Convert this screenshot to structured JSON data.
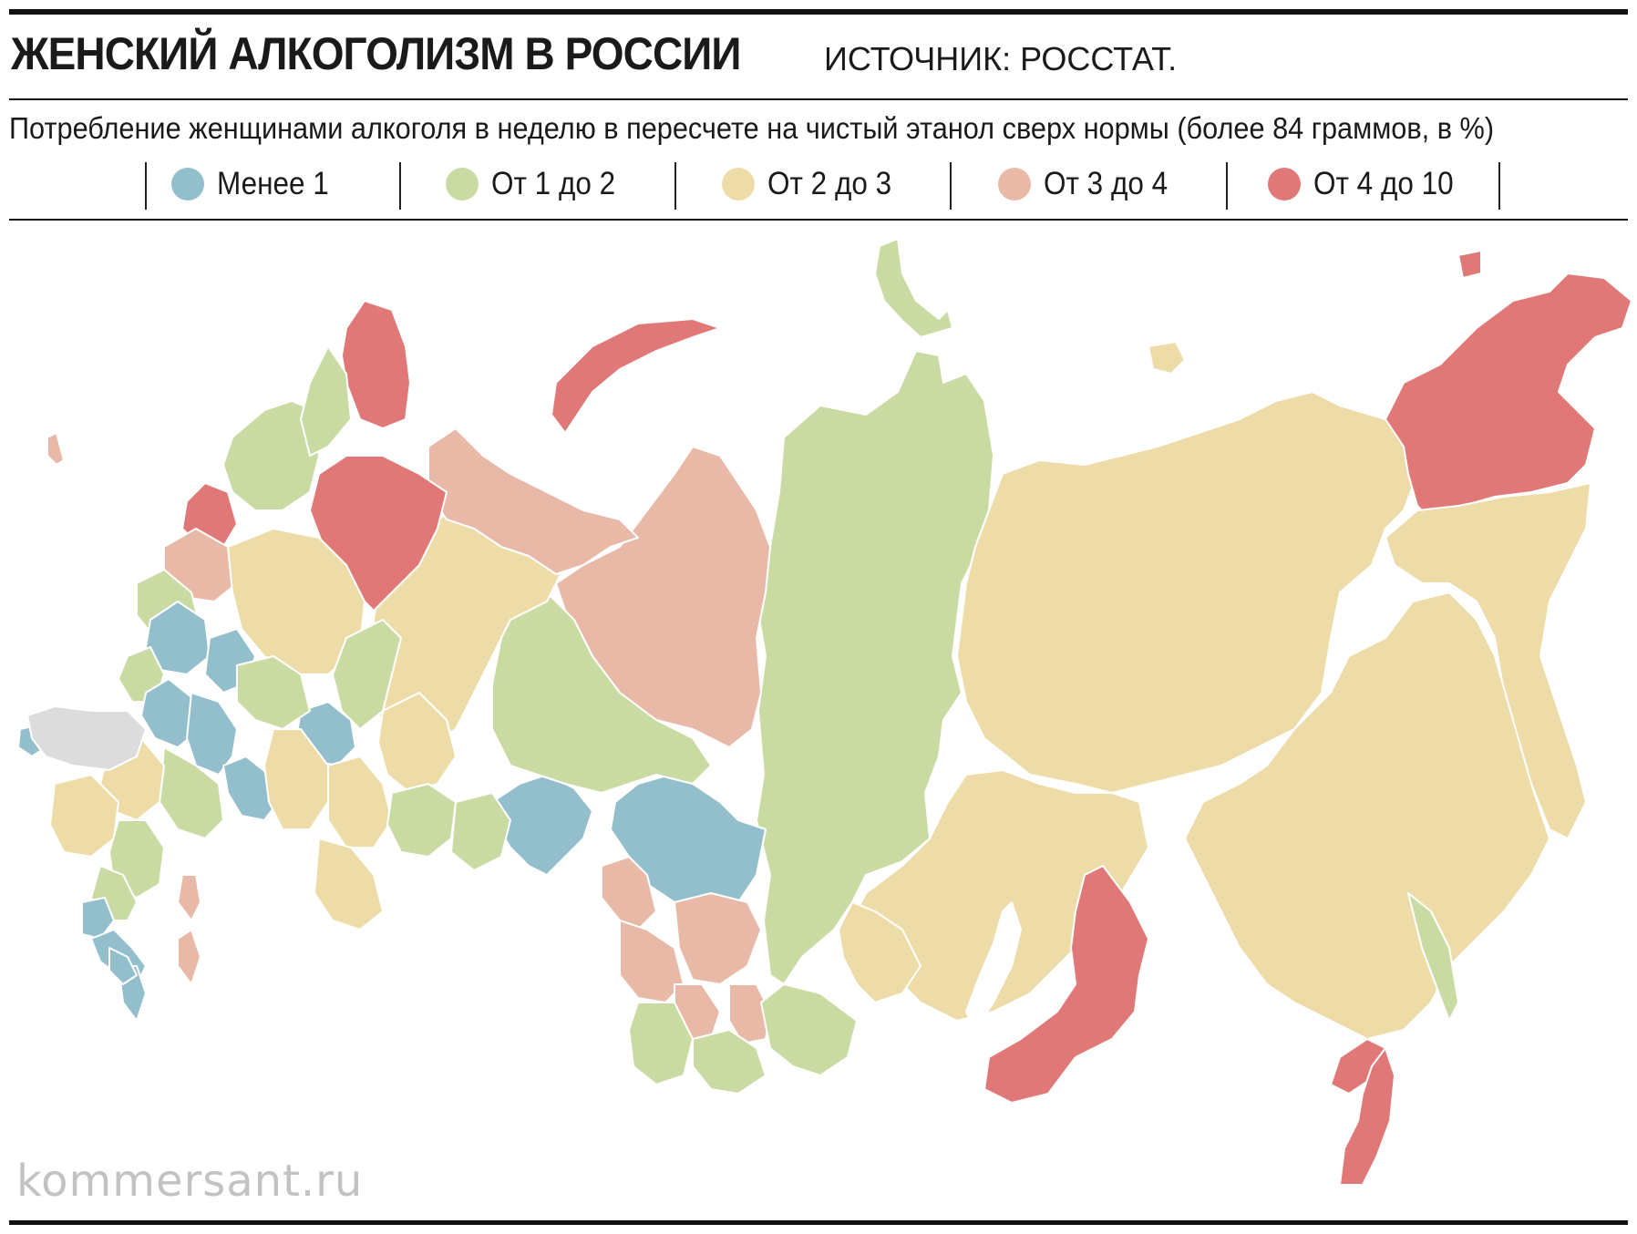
{
  "header": {
    "title": "ЖЕНСКИЙ АЛКОГОЛИЗМ В РОССИИ",
    "source": "ИСТОЧНИК: РОССТАТ.",
    "subtitle": "Потребление женщинами алкоголя в неделю в пересчете на чистый этанол сверх нормы (более 84 граммов, в %)"
  },
  "legend": [
    {
      "label": "Менее 1",
      "color": "#93bfcd"
    },
    {
      "label": "От 1 до 2",
      "color": "#c9dba2"
    },
    {
      "label": "От 2 до 3",
      "color": "#eedca8"
    },
    {
      "label": "От 3 до 4",
      "color": "#e9b9a8"
    },
    {
      "label": "От 4 до 10",
      "color": "#df7876"
    }
  ],
  "colors": {
    "no_data": "#dcdcdc",
    "border": "#ffffff"
  },
  "watermark": "kommersant.ru"
}
